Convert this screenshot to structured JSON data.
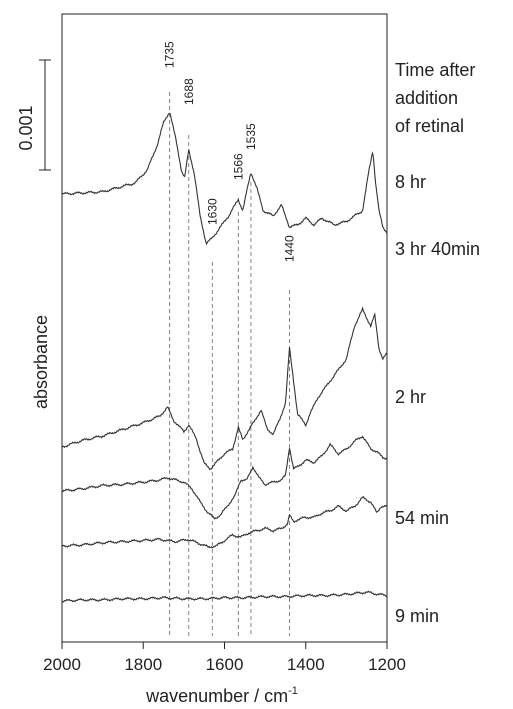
{
  "chart_data": {
    "type": "line",
    "xlabel": "wavenumber / cm",
    "xlabel_superscript": "-1",
    "ylabel": "absorbance",
    "xlim": [
      2000,
      1200
    ],
    "x_ticks": [
      "2000",
      "1800",
      "1600",
      "1400",
      "1200"
    ],
    "scale_bar": {
      "label": "0.001",
      "value": 0.001
    },
    "legend_title": [
      "Time after",
      "addition",
      "of retinal"
    ],
    "peak_labels": [
      "1735",
      "1688",
      "1630",
      "1566",
      "1535",
      "1440"
    ],
    "peak_positions": [
      1735,
      1688,
      1630,
      1566,
      1535,
      1440
    ],
    "series": [
      {
        "name": "8 hr",
        "offset": 0.0038,
        "points": [
          [
            2000,
            0
          ],
          [
            1900,
            2e-05
          ],
          [
            1820,
            0.0001
          ],
          [
            1790,
            0.00022
          ],
          [
            1765,
            0.00045
          ],
          [
            1750,
            0.00065
          ],
          [
            1735,
            0.00075
          ],
          [
            1720,
            0.0005
          ],
          [
            1705,
            0.0002
          ],
          [
            1698,
            0.00015
          ],
          [
            1688,
            0.0004
          ],
          [
            1675,
            0.0002
          ],
          [
            1660,
            -0.0002
          ],
          [
            1645,
            -0.00045
          ],
          [
            1630,
            -0.0004
          ],
          [
            1610,
            -0.0003
          ],
          [
            1590,
            -0.0002
          ],
          [
            1566,
            -5e-05
          ],
          [
            1555,
            -0.00015
          ],
          [
            1535,
            0.0002
          ],
          [
            1520,
            5e-05
          ],
          [
            1505,
            -0.00015
          ],
          [
            1480,
            -0.0002
          ],
          [
            1460,
            -0.0001
          ],
          [
            1440,
            -0.0003
          ],
          [
            1420,
            -0.00028
          ],
          [
            1400,
            -0.00022
          ],
          [
            1380,
            -0.00028
          ],
          [
            1360,
            -0.00022
          ],
          [
            1330,
            -0.00028
          ],
          [
            1300,
            -0.00025
          ],
          [
            1280,
            -0.0002
          ],
          [
            1260,
            -0.00015
          ],
          [
            1245,
            0.0002
          ],
          [
            1235,
            0.0004
          ],
          [
            1228,
            0.0001
          ],
          [
            1220,
            -0.00015
          ],
          [
            1210,
            -0.0003
          ],
          [
            1200,
            -0.00035
          ]
        ]
      },
      {
        "name": "3 hr 40min",
        "offset": 0.0015,
        "points": [
          [
            2000,
            0
          ],
          [
            1950,
            6e-05
          ],
          [
            1900,
            0.0001
          ],
          [
            1850,
            0.00016
          ],
          [
            1800,
            0.00022
          ],
          [
            1760,
            0.00028
          ],
          [
            1740,
            0.00036
          ],
          [
            1725,
            0.00024
          ],
          [
            1700,
            0.00014
          ],
          [
            1688,
            0.0002
          ],
          [
            1670,
            8e-05
          ],
          [
            1650,
            -0.00015
          ],
          [
            1635,
            -0.0002
          ],
          [
            1620,
            -0.00014
          ],
          [
            1600,
            -6e-05
          ],
          [
            1580,
            -2e-05
          ],
          [
            1566,
            0.00018
          ],
          [
            1555,
            6e-05
          ],
          [
            1540,
            0.00016
          ],
          [
            1525,
            0.00024
          ],
          [
            1510,
            0.00034
          ],
          [
            1495,
            0.00016
          ],
          [
            1480,
            0.00012
          ],
          [
            1465,
            0.00024
          ],
          [
            1450,
            0.0004
          ],
          [
            1440,
            0.0009
          ],
          [
            1430,
            0.0006
          ],
          [
            1420,
            0.0003
          ],
          [
            1400,
            0.0002
          ],
          [
            1390,
            0.0003
          ],
          [
            1370,
            0.00045
          ],
          [
            1340,
            0.0006
          ],
          [
            1320,
            0.0007
          ],
          [
            1300,
            0.0008
          ],
          [
            1280,
            0.0011
          ],
          [
            1260,
            0.00125
          ],
          [
            1240,
            0.0011
          ],
          [
            1230,
            0.0012
          ],
          [
            1220,
            0.0009
          ],
          [
            1210,
            0.0008
          ],
          [
            1200,
            0.00085
          ]
        ]
      },
      {
        "name": "2 hr",
        "offset": 0.0011,
        "points": [
          [
            2000,
            0
          ],
          [
            1950,
            2e-05
          ],
          [
            1900,
            5e-05
          ],
          [
            1850,
            6e-05
          ],
          [
            1800,
            8e-05
          ],
          [
            1760,
            0.0001
          ],
          [
            1740,
            0.00012
          ],
          [
            1720,
            0.0001
          ],
          [
            1700,
            8e-05
          ],
          [
            1680,
            2e-05
          ],
          [
            1660,
            -0.0001
          ],
          [
            1640,
            -0.0002
          ],
          [
            1625,
            -0.00025
          ],
          [
            1610,
            -0.00022
          ],
          [
            1590,
            -0.00012
          ],
          [
            1575,
            -5e-05
          ],
          [
            1560,
            0.0001
          ],
          [
            1545,
            0.0001
          ],
          [
            1530,
            0.00022
          ],
          [
            1515,
            0.00012
          ],
          [
            1500,
            6e-05
          ],
          [
            1480,
            8e-05
          ],
          [
            1460,
            0.0001
          ],
          [
            1450,
            0.00014
          ],
          [
            1440,
            0.0004
          ],
          [
            1430,
            0.0002
          ],
          [
            1420,
            0.00022
          ],
          [
            1400,
            0.00028
          ],
          [
            1380,
            0.00026
          ],
          [
            1360,
            0.00032
          ],
          [
            1340,
            0.00042
          ],
          [
            1320,
            0.00034
          ],
          [
            1300,
            0.00038
          ],
          [
            1280,
            0.00045
          ],
          [
            1260,
            0.0005
          ],
          [
            1240,
            0.00038
          ],
          [
            1225,
            0.00036
          ],
          [
            1210,
            0.0003
          ],
          [
            1200,
            0.0003
          ]
        ]
      },
      {
        "name": "54 min",
        "offset": 0.0006,
        "points": [
          [
            2000,
            0
          ],
          [
            1950,
            1e-05
          ],
          [
            1900,
            3e-05
          ],
          [
            1850,
            4e-05
          ],
          [
            1800,
            5e-05
          ],
          [
            1760,
            6e-05
          ],
          [
            1720,
            4e-05
          ],
          [
            1690,
            6e-05
          ],
          [
            1660,
            2e-05
          ],
          [
            1640,
            -1e-05
          ],
          [
            1620,
            0
          ],
          [
            1600,
            5e-05
          ],
          [
            1580,
            0.0001
          ],
          [
            1560,
            8e-05
          ],
          [
            1540,
            0.00012
          ],
          [
            1520,
            0.00014
          ],
          [
            1500,
            0.00016
          ],
          [
            1480,
            0.00014
          ],
          [
            1460,
            0.00016
          ],
          [
            1445,
            0.0002
          ],
          [
            1440,
            0.00028
          ],
          [
            1430,
            0.00022
          ],
          [
            1420,
            0.00024
          ],
          [
            1400,
            0.00026
          ],
          [
            1380,
            0.00026
          ],
          [
            1360,
            0.0003
          ],
          [
            1340,
            0.00032
          ],
          [
            1320,
            0.00036
          ],
          [
            1300,
            0.00032
          ],
          [
            1280,
            0.00036
          ],
          [
            1260,
            0.00044
          ],
          [
            1240,
            0.0004
          ],
          [
            1225,
            0.0003
          ],
          [
            1215,
            0.00036
          ],
          [
            1200,
            0.00036
          ]
        ]
      },
      {
        "name": "9 min",
        "offset": 0.0001,
        "points": [
          [
            2000,
            0
          ],
          [
            1950,
            1e-05
          ],
          [
            1900,
            1e-05
          ],
          [
            1850,
            2e-05
          ],
          [
            1800,
            2e-05
          ],
          [
            1750,
            3e-05
          ],
          [
            1700,
            2e-05
          ],
          [
            1650,
            2e-05
          ],
          [
            1600,
            3e-05
          ],
          [
            1550,
            3e-05
          ],
          [
            1500,
            4e-05
          ],
          [
            1450,
            4e-05
          ],
          [
            1400,
            5e-05
          ],
          [
            1350,
            5e-05
          ],
          [
            1300,
            6e-05
          ],
          [
            1250,
            8e-05
          ],
          [
            1220,
            6e-05
          ],
          [
            1200,
            5e-05
          ]
        ]
      }
    ]
  }
}
